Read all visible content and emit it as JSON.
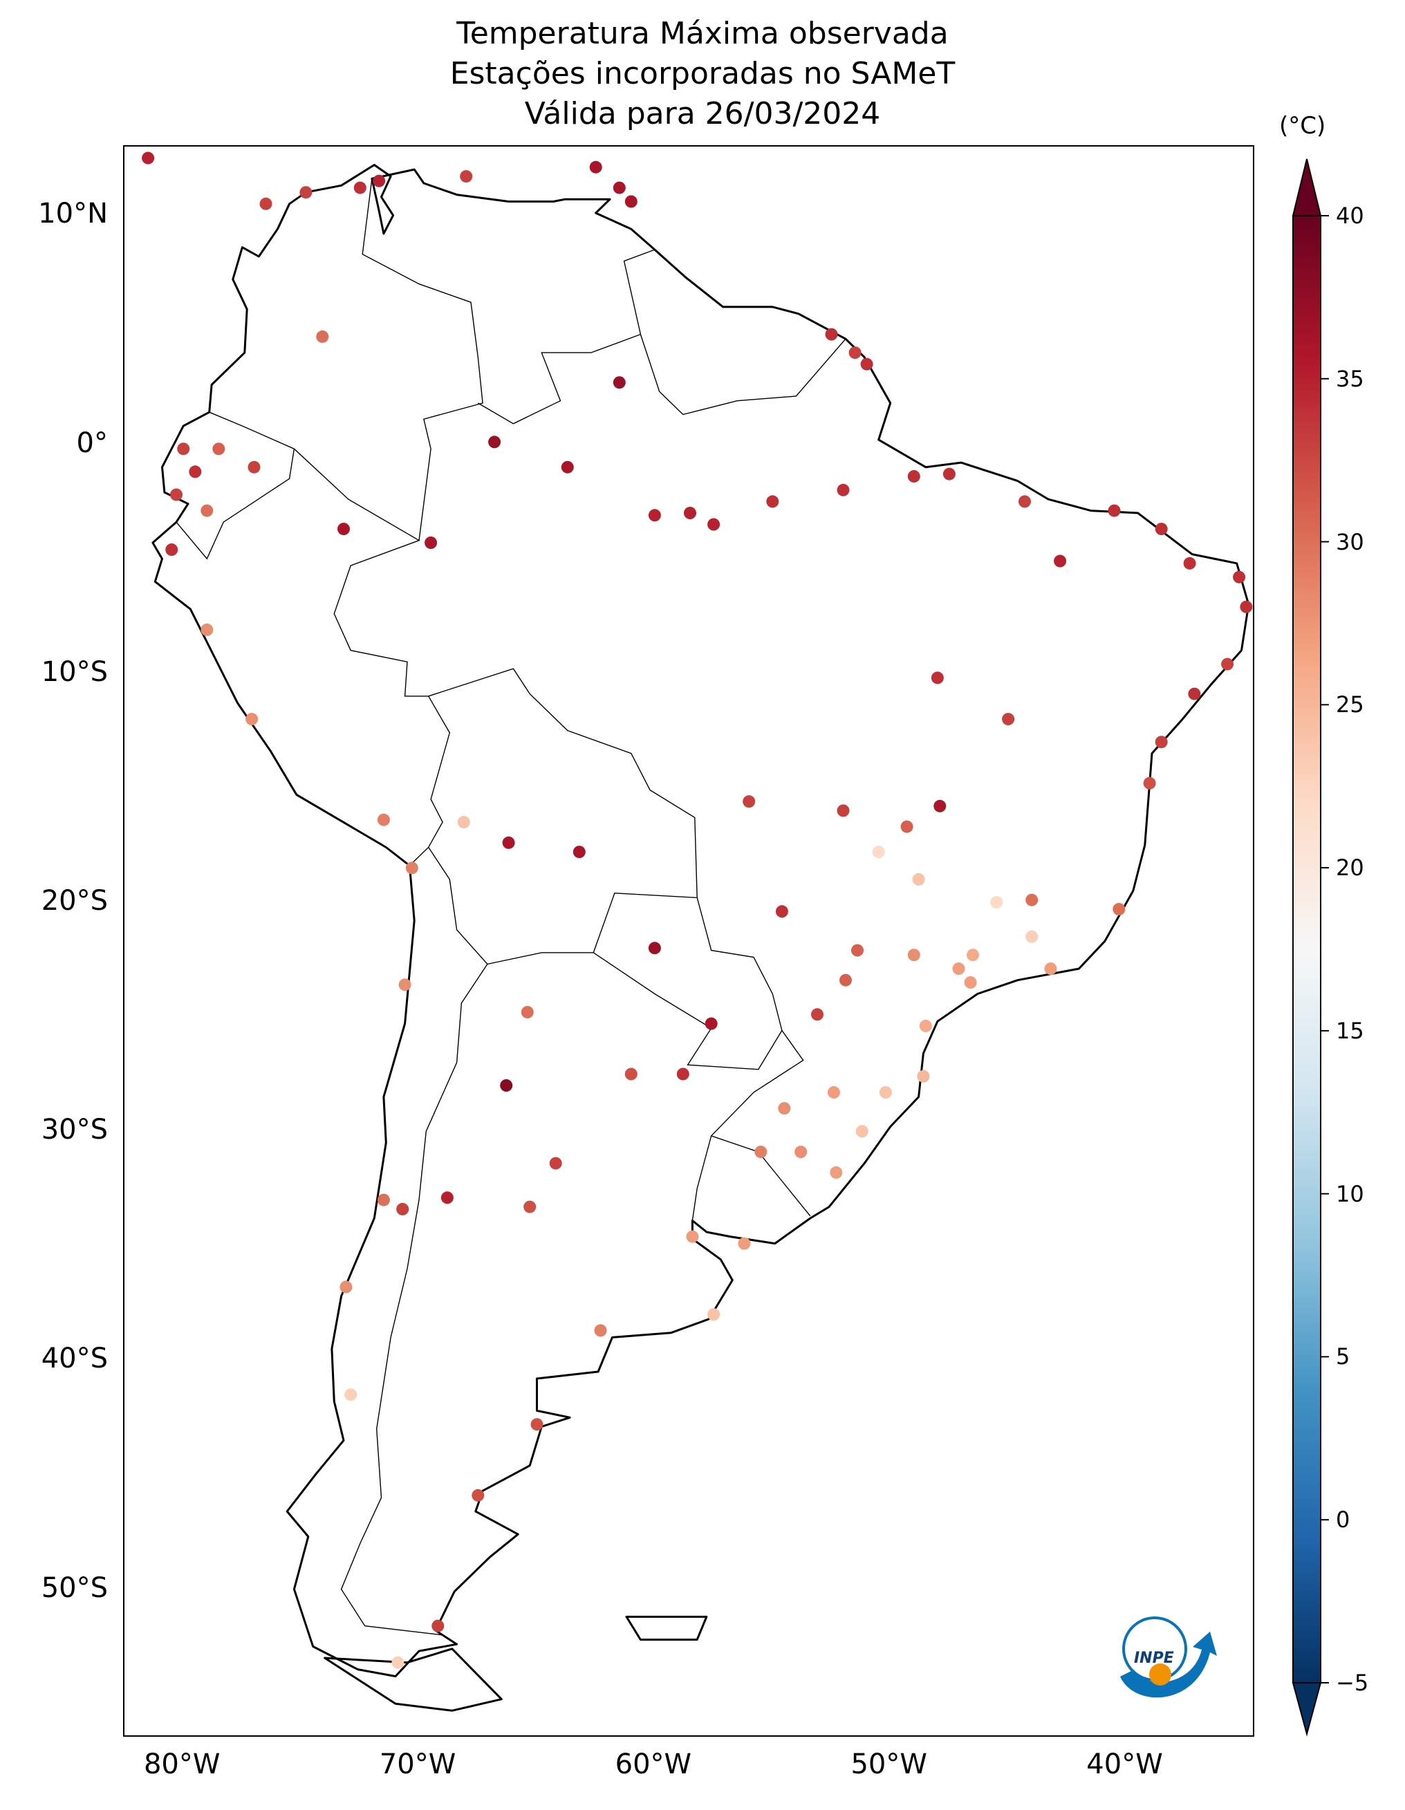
{
  "title": {
    "line1": "Temperatura Máxima observada",
    "line2": "Estações incorporadas no SAMeT",
    "line3": "Válida para 26/03/2024"
  },
  "axes": {
    "lat_labels": [
      "10°N",
      "0°",
      "10°S",
      "20°S",
      "30°S",
      "40°S",
      "50°S"
    ],
    "lat_values": [
      10,
      0,
      -10,
      -20,
      -30,
      -40,
      -50
    ],
    "lon_labels": [
      "80°W",
      "70°W",
      "60°W",
      "50°W",
      "40°W"
    ],
    "lon_values": [
      -80,
      -70,
      -60,
      -50,
      -40
    ],
    "lon_range": [
      -82.5,
      -34.5
    ],
    "lat_range": [
      -56.5,
      13
    ]
  },
  "colorbar": {
    "unit": "(°C)",
    "tick_labels": [
      "40",
      "35",
      "30",
      "25",
      "20",
      "15",
      "10",
      "5",
      "0",
      "−5"
    ],
    "tick_values": [
      40,
      35,
      30,
      25,
      20,
      15,
      10,
      5,
      0,
      -5
    ],
    "range": [
      -5,
      40
    ],
    "colors": [
      "#053061",
      "#2166ac",
      "#4393c3",
      "#92c5de",
      "#d1e5f0",
      "#f7f7f7",
      "#fddbc7",
      "#f4a582",
      "#d6604d",
      "#b2182b",
      "#67001f"
    ]
  },
  "logo": {
    "text": "INPE",
    "colors": {
      "blue": "#0a72b8",
      "orange": "#f39200"
    }
  },
  "map_data": {
    "layer": "station points",
    "variable": "Temperatura Máxima (°C)",
    "stations": [
      {
        "lon": -81.5,
        "lat": 12.5,
        "t": 35
      },
      {
        "lon": -76.5,
        "lat": 10.5,
        "t": 33
      },
      {
        "lon": -74.8,
        "lat": 11.0,
        "t": 33
      },
      {
        "lon": -72.5,
        "lat": 11.2,
        "t": 34
      },
      {
        "lon": -71.7,
        "lat": 11.5,
        "t": 35
      },
      {
        "lon": -68.0,
        "lat": 11.7,
        "t": 33
      },
      {
        "lon": -62.5,
        "lat": 12.1,
        "t": 36
      },
      {
        "lon": -61.5,
        "lat": 11.2,
        "t": 36
      },
      {
        "lon": -61.0,
        "lat": 10.6,
        "t": 36
      },
      {
        "lon": -74.1,
        "lat": 4.7,
        "t": 30
      },
      {
        "lon": -61.5,
        "lat": 2.7,
        "t": 37
      },
      {
        "lon": -52.5,
        "lat": 4.8,
        "t": 34
      },
      {
        "lon": -51.5,
        "lat": 4.0,
        "t": 33
      },
      {
        "lon": -51.0,
        "lat": 3.5,
        "t": 34
      },
      {
        "lon": -80.0,
        "lat": -0.2,
        "t": 33
      },
      {
        "lon": -78.5,
        "lat": -0.2,
        "t": 31
      },
      {
        "lon": -79.5,
        "lat": -1.2,
        "t": 34
      },
      {
        "lon": -77.0,
        "lat": -1.0,
        "t": 33
      },
      {
        "lon": -80.3,
        "lat": -2.2,
        "t": 33
      },
      {
        "lon": -79.0,
        "lat": -2.9,
        "t": 30
      },
      {
        "lon": -80.5,
        "lat": -4.6,
        "t": 34
      },
      {
        "lon": -73.2,
        "lat": -3.7,
        "t": 36
      },
      {
        "lon": -69.5,
        "lat": -4.3,
        "t": 36
      },
      {
        "lon": -66.8,
        "lat": 0.1,
        "t": 37
      },
      {
        "lon": -63.7,
        "lat": -1.0,
        "t": 36
      },
      {
        "lon": -60.0,
        "lat": -3.1,
        "t": 35
      },
      {
        "lon": -58.5,
        "lat": -3.0,
        "t": 35
      },
      {
        "lon": -57.5,
        "lat": -3.5,
        "t": 35
      },
      {
        "lon": -55.0,
        "lat": -2.5,
        "t": 34
      },
      {
        "lon": -52.0,
        "lat": -2.0,
        "t": 34
      },
      {
        "lon": -49.0,
        "lat": -1.4,
        "t": 34
      },
      {
        "lon": -47.5,
        "lat": -1.3,
        "t": 34
      },
      {
        "lon": -44.3,
        "lat": -2.5,
        "t": 33
      },
      {
        "lon": -40.5,
        "lat": -2.9,
        "t": 34
      },
      {
        "lon": -38.5,
        "lat": -3.7,
        "t": 34
      },
      {
        "lon": -37.3,
        "lat": -5.2,
        "t": 34
      },
      {
        "lon": -35.2,
        "lat": -5.8,
        "t": 34
      },
      {
        "lon": -34.9,
        "lat": -7.1,
        "t": 34
      },
      {
        "lon": -35.7,
        "lat": -9.6,
        "t": 33
      },
      {
        "lon": -37.1,
        "lat": -10.9,
        "t": 34
      },
      {
        "lon": -38.5,
        "lat": -13.0,
        "t": 33
      },
      {
        "lon": -39.0,
        "lat": -14.8,
        "t": 32
      },
      {
        "lon": -40.3,
        "lat": -20.3,
        "t": 30
      },
      {
        "lon": -43.2,
        "lat": -22.9,
        "t": 27
      },
      {
        "lon": -46.6,
        "lat": -23.5,
        "t": 27
      },
      {
        "lon": -48.5,
        "lat": -25.4,
        "t": 26
      },
      {
        "lon": -48.6,
        "lat": -27.6,
        "t": 25
      },
      {
        "lon": -51.2,
        "lat": -30.0,
        "t": 24
      },
      {
        "lon": -52.3,
        "lat": -31.8,
        "t": 27
      },
      {
        "lon": -56.2,
        "lat": -34.9,
        "t": 27
      },
      {
        "lon": -58.4,
        "lat": -34.6,
        "t": 27
      },
      {
        "lon": -57.5,
        "lat": -38.0,
        "t": 24
      },
      {
        "lon": -62.3,
        "lat": -38.7,
        "t": 29
      },
      {
        "lon": -65.0,
        "lat": -42.8,
        "t": 32
      },
      {
        "lon": -67.5,
        "lat": -45.9,
        "t": 32
      },
      {
        "lon": -69.2,
        "lat": -51.6,
        "t": 33
      },
      {
        "lon": -70.9,
        "lat": -53.2,
        "t": 23
      },
      {
        "lon": -72.9,
        "lat": -41.5,
        "t": 23
      },
      {
        "lon": -73.1,
        "lat": -36.8,
        "t": 28
      },
      {
        "lon": -71.5,
        "lat": -33.0,
        "t": 30
      },
      {
        "lon": -70.7,
        "lat": -33.4,
        "t": 33
      },
      {
        "lon": -70.6,
        "lat": -23.6,
        "t": 28
      },
      {
        "lon": -70.3,
        "lat": -18.5,
        "t": 29
      },
      {
        "lon": -71.5,
        "lat": -16.4,
        "t": 29
      },
      {
        "lon": -77.1,
        "lat": -12.0,
        "t": 28
      },
      {
        "lon": -79.0,
        "lat": -8.1,
        "t": 28
      },
      {
        "lon": -68.1,
        "lat": -16.5,
        "t": 24
      },
      {
        "lon": -66.2,
        "lat": -17.4,
        "t": 36
      },
      {
        "lon": -63.2,
        "lat": -17.8,
        "t": 36
      },
      {
        "lon": -60.0,
        "lat": -22.0,
        "t": 37
      },
      {
        "lon": -57.6,
        "lat": -25.3,
        "t": 36
      },
      {
        "lon": -65.4,
        "lat": -24.8,
        "t": 30
      },
      {
        "lon": -64.2,
        "lat": -31.4,
        "t": 33
      },
      {
        "lon": -65.3,
        "lat": -33.3,
        "t": 32
      },
      {
        "lon": -68.8,
        "lat": -32.9,
        "t": 35
      },
      {
        "lon": -66.3,
        "lat": -28.0,
        "t": 38
      },
      {
        "lon": -61.0,
        "lat": -27.5,
        "t": 32
      },
      {
        "lon": -58.8,
        "lat": -27.5,
        "t": 34
      },
      {
        "lon": -56.0,
        "lat": -15.6,
        "t": 33
      },
      {
        "lon": -54.6,
        "lat": -20.4,
        "t": 34
      },
      {
        "lon": -52.0,
        "lat": -16.0,
        "t": 33
      },
      {
        "lon": -49.3,
        "lat": -16.7,
        "t": 31
      },
      {
        "lon": -47.9,
        "lat": -15.8,
        "t": 36
      },
      {
        "lon": -44.0,
        "lat": -19.9,
        "t": 30
      },
      {
        "lon": -45.0,
        "lat": -12.0,
        "t": 33
      },
      {
        "lon": -42.8,
        "lat": -5.1,
        "t": 35
      },
      {
        "lon": -48.0,
        "lat": -10.2,
        "t": 34
      },
      {
        "lon": -46.5,
        "lat": -22.3,
        "t": 26
      },
      {
        "lon": -47.1,
        "lat": -22.9,
        "t": 27
      },
      {
        "lon": -49.0,
        "lat": -22.3,
        "t": 28
      },
      {
        "lon": -51.4,
        "lat": -22.1,
        "t": 31
      },
      {
        "lon": -53.1,
        "lat": -24.9,
        "t": 33
      },
      {
        "lon": -51.9,
        "lat": -23.4,
        "t": 31
      },
      {
        "lon": -50.2,
        "lat": -28.3,
        "t": 24
      },
      {
        "lon": -52.4,
        "lat": -28.3,
        "t": 27
      },
      {
        "lon": -54.5,
        "lat": -29.0,
        "t": 28
      },
      {
        "lon": -53.8,
        "lat": -30.9,
        "t": 28
      },
      {
        "lon": -55.5,
        "lat": -30.9,
        "t": 29
      },
      {
        "lon": -44.0,
        "lat": -21.5,
        "t": 23
      },
      {
        "lon": -45.5,
        "lat": -20.0,
        "t": 22
      },
      {
        "lon": -48.8,
        "lat": -19.0,
        "t": 24
      },
      {
        "lon": -50.5,
        "lat": -17.8,
        "t": 22
      }
    ]
  }
}
